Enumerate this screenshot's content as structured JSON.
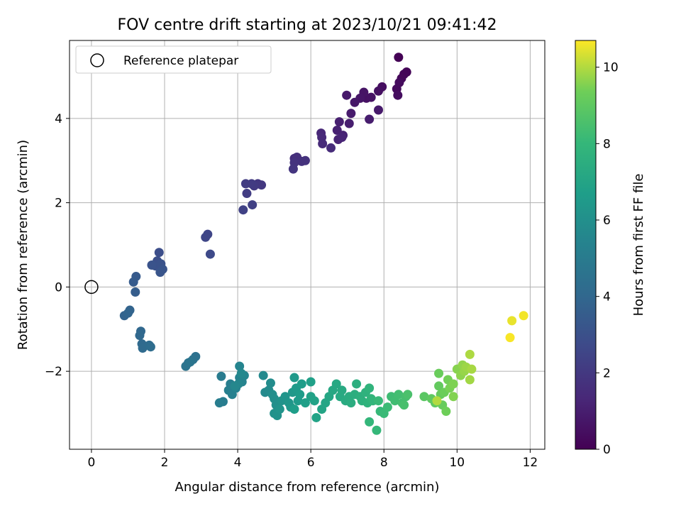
{
  "chart_data": {
    "type": "scatter",
    "title": "FOV centre drift starting at 2023/10/21 09:41:42",
    "xlabel": "Angular distance from reference (arcmin)",
    "ylabel": "Rotation from reference (arcmin)",
    "xlim": [
      -0.6,
      12.4
    ],
    "ylim": [
      -3.85,
      5.85
    ],
    "xticks": [
      0,
      2,
      4,
      6,
      8,
      10,
      12
    ],
    "xtick_labels": [
      "0",
      "2",
      "4",
      "6",
      "8",
      "10",
      "12"
    ],
    "yticks": [
      -2,
      0,
      2,
      4
    ],
    "ytick_labels": [
      "−2",
      "0",
      "2",
      "4"
    ],
    "grid": true,
    "legend": {
      "position": "top-left",
      "entries": [
        "Reference platepar"
      ]
    },
    "reference_point": {
      "x": 0,
      "y": 0
    },
    "colorbar": {
      "label": "Hours from first FF file",
      "range": [
        0,
        10.7
      ],
      "ticks": [
        0,
        2,
        4,
        6,
        8,
        10
      ],
      "tick_labels": [
        "0",
        "2",
        "4",
        "6",
        "8",
        "10"
      ],
      "colormap": "viridis"
    },
    "series": [
      {
        "points": [
          [
            8.4,
            5.45,
            0.05
          ],
          [
            8.62,
            5.1,
            0.1
          ],
          [
            8.55,
            5.05,
            0.15
          ],
          [
            8.48,
            4.95,
            0.2
          ],
          [
            8.35,
            4.7,
            0.3
          ],
          [
            8.42,
            4.85,
            0.35
          ],
          [
            8.38,
            4.55,
            0.4
          ],
          [
            7.95,
            4.75,
            0.45
          ],
          [
            7.85,
            4.65,
            0.5
          ],
          [
            7.52,
            4.48,
            0.55
          ],
          [
            7.65,
            4.5,
            0.6
          ],
          [
            7.45,
            4.62,
            0.65
          ],
          [
            7.35,
            4.48,
            0.7
          ],
          [
            7.2,
            4.38,
            0.75
          ],
          [
            6.98,
            4.55,
            0.8
          ],
          [
            7.85,
            4.2,
            0.85
          ],
          [
            7.1,
            4.12,
            0.9
          ],
          [
            7.6,
            3.98,
            0.95
          ],
          [
            7.05,
            3.88,
            1.0
          ],
          [
            6.78,
            3.92,
            1.05
          ],
          [
            6.72,
            3.72,
            1.1
          ],
          [
            6.88,
            3.6,
            1.15
          ],
          [
            6.75,
            3.5,
            1.2
          ],
          [
            6.85,
            3.55,
            1.25
          ],
          [
            6.28,
            3.65,
            1.35
          ],
          [
            6.3,
            3.55,
            1.4
          ],
          [
            6.32,
            3.4,
            1.45
          ],
          [
            6.55,
            3.3,
            1.5
          ],
          [
            5.55,
            3.05,
            1.6
          ],
          [
            5.62,
            3.08,
            1.65
          ],
          [
            5.75,
            2.98,
            1.7
          ],
          [
            5.85,
            3.0,
            1.75
          ],
          [
            5.55,
            2.95,
            1.8
          ],
          [
            5.52,
            2.8,
            1.85
          ],
          [
            4.55,
            2.45,
            1.95
          ],
          [
            4.65,
            2.42,
            2.0
          ],
          [
            4.45,
            2.4,
            2.05
          ],
          [
            4.38,
            2.45,
            2.1
          ],
          [
            4.22,
            2.45,
            2.15
          ],
          [
            4.25,
            2.22,
            2.2
          ],
          [
            4.4,
            1.95,
            2.3
          ],
          [
            4.15,
            1.83,
            2.35
          ],
          [
            3.18,
            1.25,
            2.5
          ],
          [
            3.12,
            1.18,
            2.55
          ],
          [
            3.25,
            0.78,
            2.7
          ],
          [
            1.85,
            0.82,
            2.9
          ],
          [
            1.8,
            0.62,
            2.95
          ],
          [
            1.75,
            0.5,
            3.0
          ],
          [
            1.9,
            0.55,
            3.05
          ],
          [
            1.65,
            0.52,
            3.1
          ],
          [
            1.95,
            0.42,
            3.15
          ],
          [
            1.88,
            0.35,
            3.2
          ],
          [
            1.22,
            0.25,
            3.4
          ],
          [
            1.15,
            0.12,
            3.45
          ],
          [
            1.2,
            -0.12,
            3.55
          ],
          [
            0.9,
            -0.68,
            3.8
          ],
          [
            1.05,
            -0.55,
            3.85
          ],
          [
            1.0,
            -0.62,
            3.9
          ],
          [
            1.35,
            -1.05,
            4.0
          ],
          [
            1.32,
            -1.15,
            4.05
          ],
          [
            1.38,
            -1.35,
            4.1
          ],
          [
            1.4,
            -1.45,
            4.15
          ],
          [
            1.58,
            -1.38,
            4.2
          ],
          [
            1.62,
            -1.42,
            4.25
          ],
          [
            2.85,
            -1.65,
            4.5
          ],
          [
            2.78,
            -1.72,
            4.55
          ],
          [
            2.65,
            -1.8,
            4.6
          ],
          [
            2.58,
            -1.88,
            4.65
          ],
          [
            2.7,
            -1.78,
            4.7
          ],
          [
            3.55,
            -2.12,
            5.0
          ],
          [
            3.6,
            -2.72,
            5.05
          ],
          [
            3.5,
            -2.75,
            5.1
          ],
          [
            3.8,
            -2.3,
            5.15
          ],
          [
            3.75,
            -2.45,
            5.2
          ],
          [
            3.85,
            -2.55,
            5.25
          ],
          [
            3.95,
            -2.4,
            5.3
          ],
          [
            4.05,
            -2.15,
            5.35
          ],
          [
            4.12,
            -2.25,
            5.4
          ],
          [
            4.05,
            -1.88,
            5.45
          ],
          [
            4.18,
            -2.1,
            5.5
          ],
          [
            4.02,
            -2.3,
            5.55
          ],
          [
            3.92,
            -2.35,
            5.6
          ],
          [
            4.1,
            -2.05,
            5.65
          ],
          [
            4.7,
            -2.1,
            5.7
          ],
          [
            4.75,
            -2.5,
            5.75
          ],
          [
            4.85,
            -2.45,
            5.8
          ],
          [
            4.9,
            -2.28,
            5.85
          ],
          [
            4.95,
            -2.55,
            5.9
          ],
          [
            5.0,
            -2.65,
            5.95
          ],
          [
            5.05,
            -2.8,
            6.0
          ],
          [
            5.0,
            -3.0,
            6.05
          ],
          [
            5.08,
            -3.05,
            6.1
          ],
          [
            5.2,
            -2.7,
            6.15
          ],
          [
            5.15,
            -2.9,
            6.2
          ],
          [
            5.3,
            -2.6,
            6.25
          ],
          [
            5.4,
            -2.75,
            6.3
          ],
          [
            5.45,
            -2.85,
            6.35
          ],
          [
            5.5,
            -2.5,
            6.4
          ],
          [
            5.55,
            -2.15,
            6.45
          ],
          [
            5.6,
            -2.4,
            6.5
          ],
          [
            5.65,
            -2.7,
            6.55
          ],
          [
            5.7,
            -2.55,
            6.6
          ],
          [
            5.75,
            -2.3,
            6.65
          ],
          [
            5.55,
            -2.9,
            6.7
          ],
          [
            5.85,
            -2.75,
            6.75
          ],
          [
            6.0,
            -2.25,
            6.8
          ],
          [
            6.0,
            -2.6,
            6.85
          ],
          [
            6.1,
            -2.7,
            6.9
          ],
          [
            6.15,
            -3.1,
            6.95
          ],
          [
            6.3,
            -2.9,
            7.0
          ],
          [
            6.4,
            -2.75,
            7.05
          ],
          [
            6.5,
            -2.6,
            7.1
          ],
          [
            6.6,
            -2.45,
            7.15
          ],
          [
            6.7,
            -2.3,
            7.2
          ],
          [
            6.8,
            -2.6,
            7.25
          ],
          [
            6.85,
            -2.45,
            7.3
          ],
          [
            6.95,
            -2.7,
            7.35
          ],
          [
            7.05,
            -2.6,
            7.4
          ],
          [
            7.1,
            -2.75,
            7.45
          ],
          [
            7.2,
            -2.55,
            7.5
          ],
          [
            7.25,
            -2.3,
            7.55
          ],
          [
            7.35,
            -2.6,
            7.6
          ],
          [
            7.4,
            -2.7,
            7.65
          ],
          [
            7.5,
            -2.5,
            7.7
          ],
          [
            7.55,
            -2.75,
            7.75
          ],
          [
            7.6,
            -2.4,
            7.8
          ],
          [
            7.65,
            -2.65,
            7.85
          ],
          [
            7.7,
            -2.7,
            7.9
          ],
          [
            7.6,
            -3.2,
            7.95
          ],
          [
            7.8,
            -3.4,
            8.0
          ],
          [
            7.9,
            -2.95,
            8.05
          ],
          [
            7.85,
            -2.7,
            8.1
          ],
          [
            8.0,
            -3.0,
            8.15
          ],
          [
            8.1,
            -2.85,
            8.2
          ],
          [
            8.2,
            -2.6,
            8.25
          ],
          [
            8.3,
            -2.7,
            8.3
          ],
          [
            8.4,
            -2.55,
            8.35
          ],
          [
            8.5,
            -2.75,
            8.4
          ],
          [
            8.6,
            -2.6,
            8.45
          ],
          [
            8.55,
            -2.8,
            8.5
          ],
          [
            8.65,
            -2.55,
            8.55
          ],
          [
            9.1,
            -2.6,
            8.9
          ],
          [
            9.3,
            -2.65,
            9.0
          ],
          [
            9.4,
            -2.75,
            9.05
          ],
          [
            9.5,
            -2.35,
            9.1
          ],
          [
            9.55,
            -2.55,
            9.15
          ],
          [
            9.6,
            -2.8,
            9.2
          ],
          [
            9.5,
            -2.05,
            9.25
          ],
          [
            9.65,
            -2.5,
            9.3
          ],
          [
            9.7,
            -2.95,
            9.35
          ],
          [
            9.75,
            -2.2,
            9.4
          ],
          [
            9.8,
            -2.4,
            9.45
          ],
          [
            9.9,
            -2.3,
            9.5
          ],
          [
            9.9,
            -2.6,
            9.55
          ],
          [
            10.0,
            -1.95,
            9.6
          ],
          [
            10.1,
            -2.1,
            9.65
          ],
          [
            10.15,
            -1.85,
            9.7
          ],
          [
            10.2,
            -2.0,
            9.75
          ],
          [
            10.25,
            -1.9,
            9.8
          ],
          [
            10.35,
            -2.2,
            9.85
          ],
          [
            10.4,
            -1.95,
            9.9
          ],
          [
            10.35,
            -1.6,
            9.95
          ],
          [
            9.45,
            -2.7,
            10.0
          ],
          [
            11.5,
            -0.8,
            10.5
          ],
          [
            11.82,
            -0.68,
            10.6
          ],
          [
            11.45,
            -1.2,
            10.65
          ]
        ]
      }
    ]
  }
}
